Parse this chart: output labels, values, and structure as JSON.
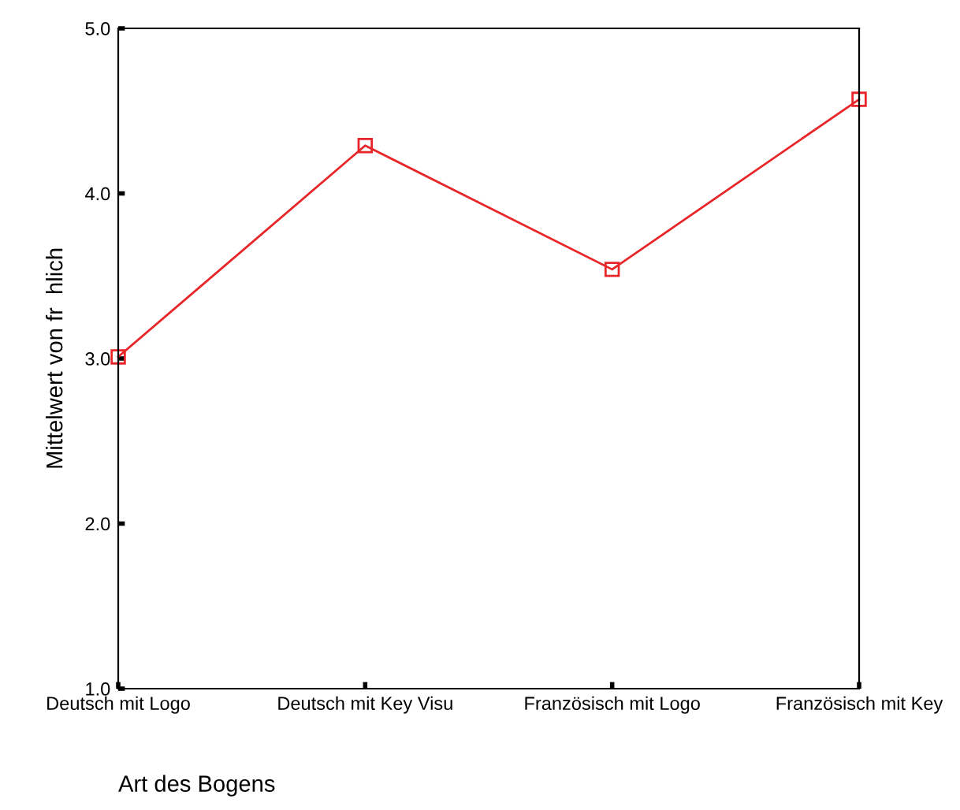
{
  "chart_data": {
    "type": "line",
    "xlabel": "Art des Bogens",
    "ylabel": "Mittelwert von fr  hlich",
    "categories": [
      "Deutsch mit Logo",
      "Deutsch mit Key Visu",
      "Französisch mit Logo",
      "Französisch mit Key"
    ],
    "series": [
      {
        "color": "#e8262a",
        "values": [
          3.01,
          4.29,
          3.54,
          4.57
        ]
      }
    ],
    "ylim": [
      1,
      5
    ],
    "yticks": [
      {
        "value": 1,
        "label": "1.0"
      },
      {
        "value": 2,
        "label": "2.0"
      },
      {
        "value": 3,
        "label": "3.0"
      },
      {
        "value": 4,
        "label": "4.0"
      },
      {
        "value": 5,
        "label": "5.0"
      }
    ],
    "marker": "square",
    "line_style": "solid",
    "grid": false,
    "legend": false
  }
}
